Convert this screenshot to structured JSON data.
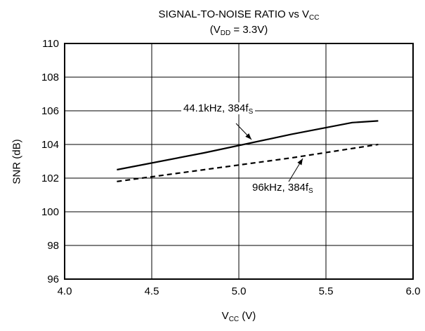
{
  "chart_data": {
    "type": "line",
    "title_parts": {
      "main": "SIGNAL-TO-NOISE RATIO vs  V",
      "main_sub": "CC"
    },
    "subtitle_parts": {
      "open": "(V",
      "sub": "DD",
      "rest": " = 3.3V)"
    },
    "xlabel_parts": {
      "main": "V",
      "sub": "CC",
      "unit": " (V)"
    },
    "ylabel": "SNR (dB)",
    "xlim": [
      4.0,
      6.0
    ],
    "ylim": [
      96,
      110
    ],
    "xticks": [
      "4.0",
      "4.5",
      "5.0",
      "5.5",
      "6.0"
    ],
    "yticks": [
      "96",
      "98",
      "100",
      "102",
      "104",
      "106",
      "108",
      "110"
    ],
    "grid": true,
    "series": [
      {
        "style": "solid",
        "x": [
          4.3,
          4.8,
          5.3,
          5.65,
          5.8
        ],
        "y": [
          102.5,
          103.5,
          104.6,
          105.3,
          105.4
        ],
        "label_parts": {
          "main": "44.1kHz, 384f",
          "sub": "S"
        }
      },
      {
        "style": "dashed",
        "x": [
          4.3,
          4.8,
          5.3,
          5.8
        ],
        "y": [
          101.8,
          102.5,
          103.2,
          104.0
        ],
        "label_parts": {
          "main": "96kHz, 384f",
          "sub": "S"
        }
      }
    ]
  }
}
